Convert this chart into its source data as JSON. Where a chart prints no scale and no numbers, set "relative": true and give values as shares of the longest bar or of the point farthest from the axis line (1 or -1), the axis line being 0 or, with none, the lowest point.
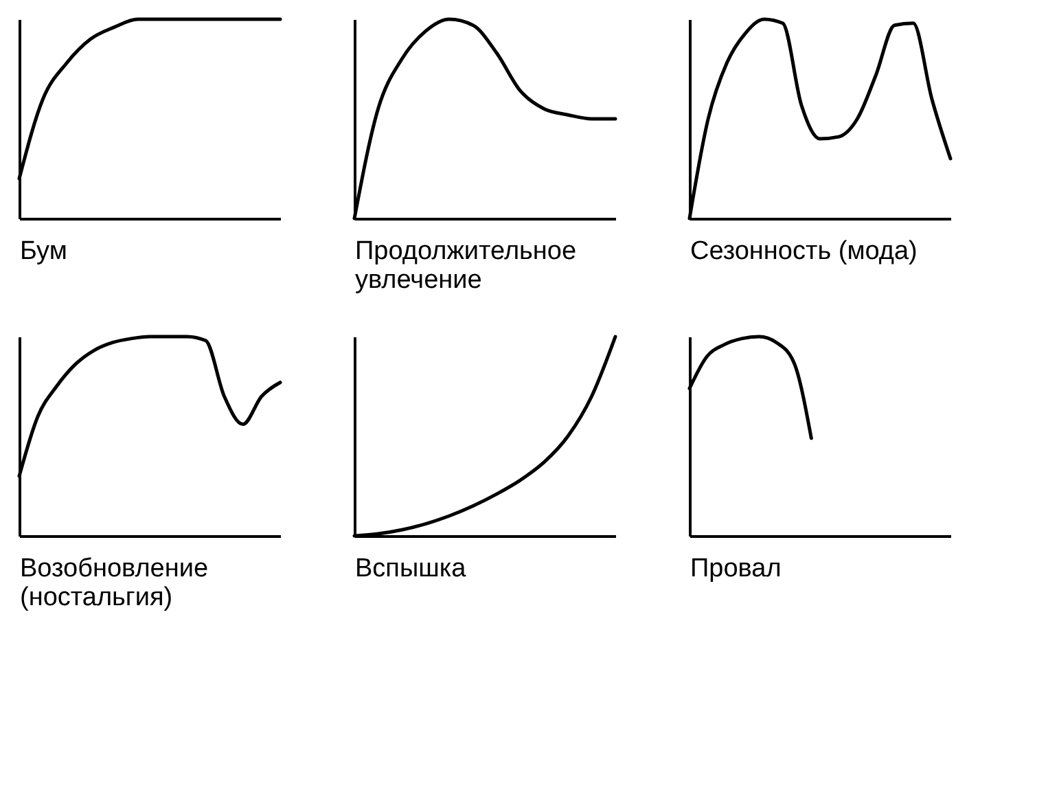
{
  "chart_data": [
    {
      "type": "line",
      "relative": true,
      "xlabel": "Бум",
      "categories": [
        null,
        null,
        null,
        null,
        null,
        null,
        null,
        null,
        null,
        null,
        null,
        null
      ],
      "series": [
        {
          "color": "#000000",
          "values": [
            0.2,
            0.6,
            0.78,
            0.9,
            0.96,
            1,
            1,
            1,
            1,
            1,
            1,
            1
          ]
        }
      ]
    },
    {
      "type": "line",
      "relative": true,
      "xlabel": "Продолжительное увлечение",
      "categories": [
        null,
        null,
        null,
        null,
        null,
        null,
        null,
        null,
        null,
        null,
        null,
        null
      ],
      "series": [
        {
          "color": "#000000",
          "values": [
            0,
            0.55,
            0.8,
            0.94,
            1,
            0.97,
            0.83,
            0.64,
            0.55,
            0.52,
            0.5,
            0.5
          ]
        }
      ]
    },
    {
      "type": "line",
      "relative": true,
      "xlabel": "Сезонность (мода)",
      "categories": [
        null,
        null,
        null,
        null,
        null,
        null,
        null,
        null,
        null,
        null,
        null,
        null,
        null,
        null,
        null
      ],
      "series": [
        {
          "color": "#000000",
          "values": [
            0,
            0.5,
            0.78,
            0.93,
            1,
            0.98,
            0.57,
            0.4,
            0.41,
            0.5,
            0.72,
            0.97,
            0.98,
            0.6,
            0.3
          ]
        }
      ]
    },
    {
      "type": "line",
      "relative": true,
      "xlabel": "Возобновление (ностальгия)",
      "categories": [
        null,
        null,
        null,
        null,
        null,
        null,
        null,
        null,
        null,
        null,
        null,
        null,
        null,
        null,
        null
      ],
      "series": [
        {
          "color": "#000000",
          "values": [
            0.3,
            0.6,
            0.75,
            0.86,
            0.93,
            0.97,
            0.99,
            1,
            1,
            1,
            0.98,
            0.7,
            0.56,
            0.7,
            0.77
          ]
        }
      ]
    },
    {
      "type": "line",
      "relative": true,
      "xlabel": "Вспышка",
      "categories": [
        null,
        null,
        null,
        null,
        null,
        null,
        null,
        null,
        null,
        null,
        null,
        null
      ],
      "series": [
        {
          "color": "#000000",
          "values": [
            0,
            0.01,
            0.03,
            0.06,
            0.1,
            0.15,
            0.21,
            0.28,
            0.37,
            0.5,
            0.7,
            1
          ]
        }
      ]
    },
    {
      "type": "line",
      "relative": true,
      "xlabel": "Провал",
      "categories": [
        null,
        null,
        null,
        null,
        null,
        null,
        null,
        null,
        null,
        null,
        null,
        null,
        null,
        null,
        null,
        null
      ],
      "series": [
        {
          "color": "#000000",
          "values": [
            0.74,
            0.9,
            0.96,
            0.99,
            1,
            0.97,
            0.87,
            0.49,
            null,
            null,
            null,
            null,
            null,
            null,
            null,
            null
          ]
        }
      ]
    }
  ]
}
